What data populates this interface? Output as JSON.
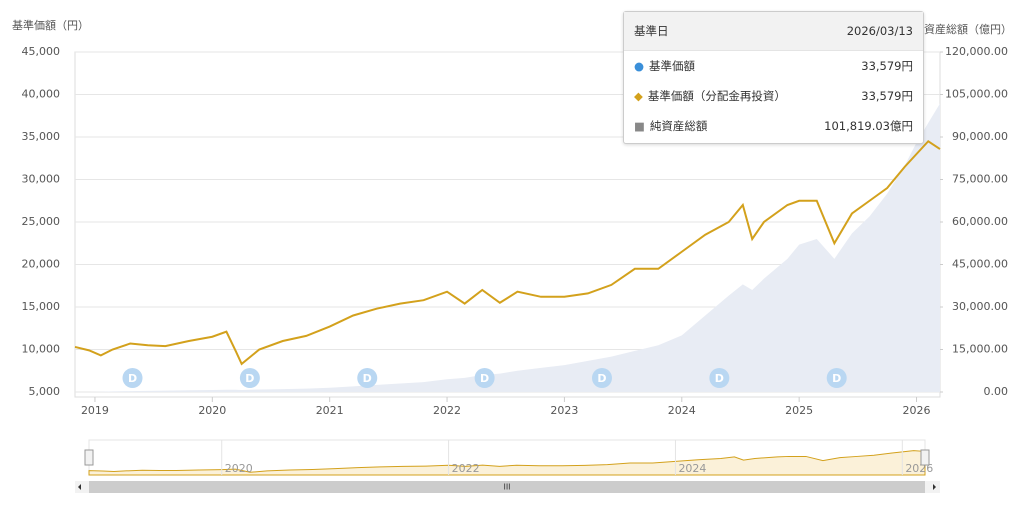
{
  "chart_data": {
    "type": "line",
    "ylabel": "基準価額（円）",
    "y2label": "純資産総額（億円）",
    "x": [
      2018.83,
      2018.95,
      2019.05,
      2019.15,
      2019.3,
      2019.45,
      2019.6,
      2019.8,
      2020.0,
      2020.12,
      2020.2,
      2020.25,
      2020.4,
      2020.6,
      2020.8,
      2021.0,
      2021.2,
      2021.4,
      2021.6,
      2021.8,
      2022.0,
      2022.15,
      2022.3,
      2022.45,
      2022.6,
      2022.8,
      2023.0,
      2023.2,
      2023.4,
      2023.6,
      2023.8,
      2024.0,
      2024.2,
      2024.4,
      2024.52,
      2024.6,
      2024.7,
      2024.9,
      2025.0,
      2025.15,
      2025.3,
      2025.45,
      2025.6,
      2025.75,
      2025.9,
      2026.0,
      2026.1,
      2026.2
    ],
    "series": [
      {
        "color": "#d3a11c",
        "values": [
          10300,
          9900,
          9300,
          10000,
          10700,
          10500,
          10400,
          11000,
          11500,
          12100,
          9800,
          8300,
          10000,
          11000,
          11600,
          12700,
          14000,
          14800,
          15400,
          15800,
          16800,
          15400,
          17000,
          15500,
          16800,
          16200,
          16200,
          16600,
          17600,
          19500,
          19500,
          21500,
          23500,
          25000,
          27000,
          23000,
          25000,
          27000,
          27500,
          27500,
          22500,
          26000,
          27500,
          29000,
          31500,
          33000,
          34500,
          33579
        ]
      },
      {
        "color": "#e8ecf4",
        "axis": "y2",
        "values": [
          0,
          0,
          100,
          200,
          300,
          400,
          500,
          600,
          700,
          800,
          800,
          700,
          900,
          1000,
          1200,
          1500,
          2000,
          2500,
          3000,
          3500,
          4500,
          5000,
          6000,
          6500,
          7500,
          8500,
          9500,
          11000,
          12500,
          14500,
          16500,
          20000,
          27000,
          34000,
          38000,
          36000,
          40000,
          47000,
          52000,
          54000,
          47000,
          56000,
          62000,
          70000,
          80000,
          88000,
          95000,
          101819
        ]
      }
    ],
    "xlim": [
      2018.83,
      2026.2
    ],
    "xticks": [
      2019,
      2020,
      2021,
      2022,
      2023,
      2024,
      2025,
      2026
    ],
    "ylim": [
      5000,
      45000
    ],
    "yticks": [
      {
        "value": 5000,
        "label": "5,000"
      },
      {
        "value": 10000,
        "label": "10,000"
      },
      {
        "value": 15000,
        "label": "15,000"
      },
      {
        "value": 20000,
        "label": "20,000"
      },
      {
        "value": 25000,
        "label": "25,000"
      },
      {
        "value": 30000,
        "label": "30,000"
      },
      {
        "value": 35000,
        "label": "35,000"
      },
      {
        "value": 40000,
        "label": "40,000"
      },
      {
        "value": 45000,
        "label": "45,000"
      }
    ],
    "y2lim": [
      0,
      120000
    ],
    "y2ticks": [
      {
        "value": 0,
        "label": "0.00"
      },
      {
        "value": 15000,
        "label": "15,000.00"
      },
      {
        "value": 30000,
        "label": "30,000.00"
      },
      {
        "value": 45000,
        "label": "45,000.00"
      },
      {
        "value": 60000,
        "label": "60,000.00"
      },
      {
        "value": 75000,
        "label": "75,000.00"
      },
      {
        "value": 90000,
        "label": "90,000.00"
      },
      {
        "value": 105000,
        "label": "105,000.00"
      },
      {
        "value": 120000,
        "label": "120,000.00"
      }
    ],
    "grid": true,
    "dividend_label": "D",
    "dividend_x": [
      2019.32,
      2020.32,
      2021.32,
      2022.32,
      2023.32,
      2024.32,
      2025.32
    ],
    "navigator_xticks": [
      2020,
      2022,
      2024,
      2026
    ],
    "scrollbar_label": "III"
  },
  "tooltip": {
    "date_label": "基準日",
    "date": "2026/03/13",
    "rows": [
      {
        "label": "基準価額",
        "value": "33,579円",
        "marker": "●",
        "color": "#3a8fd9"
      },
      {
        "label": "基準価額（分配金再投資）",
        "value": "33,579円",
        "marker": "◆",
        "color": "#d3a11c"
      },
      {
        "label": "純資産総額",
        "value": "101,819.03億円",
        "marker": "■",
        "color": "#888"
      }
    ]
  }
}
